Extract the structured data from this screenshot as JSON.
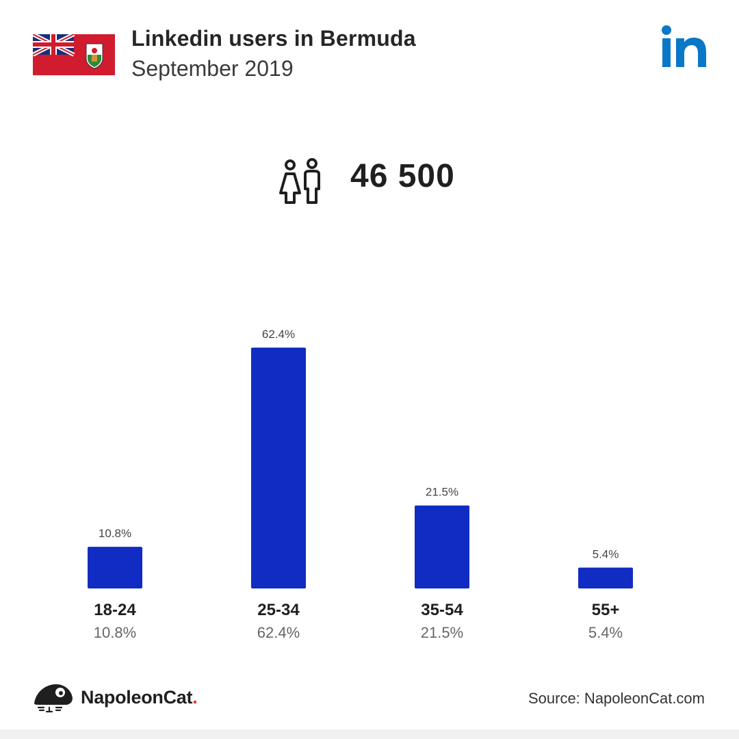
{
  "header": {
    "title": "Linkedin users in Bermuda",
    "subtitle": "September 2019"
  },
  "icons": {
    "flag": "bermuda-flag-icon",
    "linkedin": "linkedin-logo-icon",
    "users": "users-icon",
    "brand": "napoleoncat-logo-icon"
  },
  "total_users": "46 500",
  "colors": {
    "bar": "#102cc2",
    "linkedin": "#0a77c7",
    "flag_red": "#d01c2e"
  },
  "chart_data": {
    "type": "bar",
    "categories": [
      "18-24",
      "25-34",
      "35-54",
      "55+"
    ],
    "values": [
      10.8,
      62.4,
      21.5,
      5.4
    ],
    "value_labels": [
      "10.8%",
      "62.4%",
      "21.5%",
      "5.4%"
    ],
    "title": "",
    "xlabel": "",
    "ylabel": "",
    "ylim": [
      0,
      62.4
    ],
    "grid": false
  },
  "footer": {
    "brand_name": "NapoleonCat",
    "brand_dot": ".",
    "source": "Source: NapoleonCat.com"
  }
}
